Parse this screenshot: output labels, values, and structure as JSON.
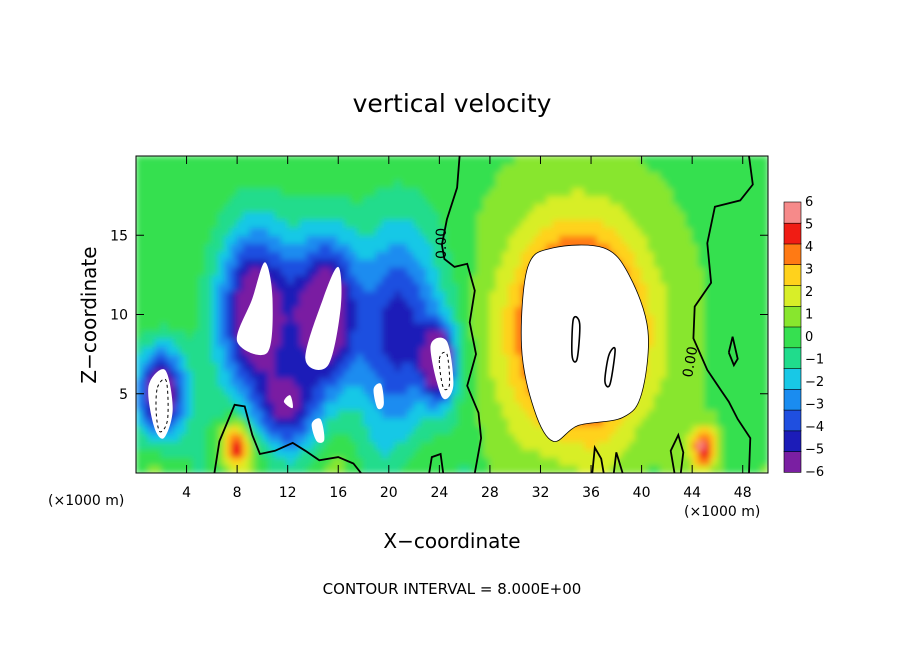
{
  "chart_data": {
    "type": "heatmap",
    "title": "vertical velocity",
    "xlabel": "X−coordinate",
    "ylabel": "Z−coordinate",
    "x_unit": "(×1000 m)",
    "x_unit_right": "(×1000 m)",
    "xlim": [
      0,
      50
    ],
    "ylim": [
      0,
      20
    ],
    "x_ticks": [
      4,
      8,
      12,
      16,
      20,
      24,
      28,
      32,
      36,
      40,
      44,
      48
    ],
    "y_ticks": [
      5,
      10,
      15
    ],
    "colorbar_ticks": [
      "6",
      "5",
      "4",
      "3",
      "2",
      "1",
      "0",
      "−1",
      "−2",
      "−3",
      "−4",
      "−5",
      "−6"
    ],
    "colorbar_range": [
      -6,
      6
    ],
    "colors": [
      "#7a1fa2",
      "#1c1cb8",
      "#1f4fe0",
      "#1a8cf0",
      "#18c8e6",
      "#20dc8c",
      "#36e050",
      "#88e62e",
      "#d8ee28",
      "#ffd21c",
      "#ff7a14",
      "#f01c14",
      "#f68a8a"
    ],
    "contour_labels": [
      "0.00",
      "0.00"
    ],
    "contour_interval_text": "CONTOUR INTERVAL = 8.000E+00",
    "features": [
      {
        "kind": "updraft",
        "x": 35,
        "z": 9,
        "w": 7,
        "rx": 6.2,
        "rz": 7.6
      },
      {
        "kind": "updraft",
        "x": 8,
        "z": 1.8,
        "w": 5,
        "rx": 1.3,
        "rz": 1.6
      },
      {
        "kind": "updraft",
        "x": 45,
        "z": 1.6,
        "w": 5,
        "rx": 1.2,
        "rz": 1.5
      },
      {
        "kind": "downdraft",
        "x": 9.5,
        "z": 10,
        "w": -7,
        "rx": 3.5,
        "rz": 6.5
      },
      {
        "kind": "downdraft",
        "x": 15,
        "z": 10,
        "w": -7,
        "rx": 3.0,
        "rz": 6.0
      },
      {
        "kind": "downdraft",
        "x": 21,
        "z": 9,
        "w": -5,
        "rx": 4.0,
        "rz": 8.0
      },
      {
        "kind": "downdraft",
        "x": 2,
        "z": 5,
        "w": -7,
        "rx": 2.3,
        "rz": 3.5
      },
      {
        "kind": "downdraft",
        "x": 24,
        "z": 7,
        "w": -7,
        "rx": 1.4,
        "rz": 2.6
      },
      {
        "kind": "downdraft",
        "x": 12,
        "z": 4,
        "w": -4,
        "rx": 3.0,
        "rz": 3.0
      }
    ]
  }
}
